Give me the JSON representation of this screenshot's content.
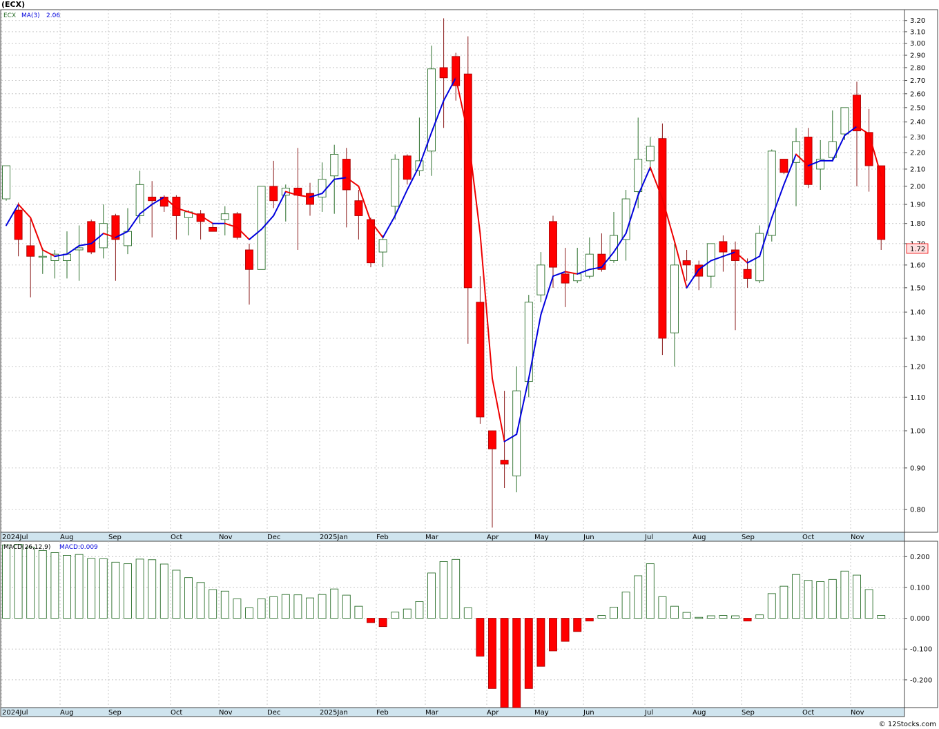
{
  "ticker_label": "(ECX)",
  "legend": {
    "symbol": "ECX",
    "ma_label": "MA(3)",
    "ma_value": "2.06",
    "macd_params": "MACD(26,12,9)",
    "macd_value": "MACD:0.009"
  },
  "watermark": "© 12Stocks.com",
  "last_price_tag": "1.72",
  "colors": {
    "up_candle": "#2a6e2a",
    "down_candle": "#ff0000",
    "ma_up": "#0000dd",
    "ma_down": "#ee0000",
    "axis_band": "#cfe4ee",
    "grid": "#bdbdbd",
    "price_tag_bg": "#ffe0e0"
  },
  "chart_data": [
    {
      "type": "candlestick",
      "scale": "log",
      "ylim": [
        0.75,
        3.3
      ],
      "y_ticks": [
        "0.80",
        "0.90",
        "1.00",
        "1.10",
        "1.20",
        "1.30",
        "1.40",
        "1.50",
        "1.60",
        "1.70",
        "1.80",
        "1.90",
        "2.00",
        "2.10",
        "2.20",
        "2.30",
        "2.40",
        "2.50",
        "2.60",
        "2.70",
        "2.80",
        "2.90",
        "3.00",
        "3.10",
        "3.20"
      ],
      "x_labels": [
        "2024Jul",
        "Aug",
        "Sep",
        "Oct",
        "Nov",
        "Dec",
        "2025Jan",
        "Feb",
        "Mar",
        "Apr",
        "May",
        "Jun",
        "Jul",
        "Aug",
        "Sep",
        "Oct",
        "Nov"
      ],
      "candles": [
        {
          "o": 1.93,
          "h": 2.12,
          "l": 1.92,
          "c": 2.12
        },
        {
          "o": 1.87,
          "h": 1.91,
          "l": 1.64,
          "c": 1.72
        },
        {
          "o": 1.69,
          "h": 1.83,
          "l": 1.46,
          "c": 1.64
        },
        {
          "o": 1.64,
          "h": 1.68,
          "l": 1.56,
          "c": 1.64
        },
        {
          "o": 1.62,
          "h": 1.67,
          "l": 1.54,
          "c": 1.65
        },
        {
          "o": 1.62,
          "h": 1.76,
          "l": 1.54,
          "c": 1.65
        },
        {
          "o": 1.67,
          "h": 1.79,
          "l": 1.53,
          "c": 1.68
        },
        {
          "o": 1.81,
          "h": 1.82,
          "l": 1.65,
          "c": 1.66
        },
        {
          "o": 1.68,
          "h": 1.9,
          "l": 1.63,
          "c": 1.8
        },
        {
          "o": 1.84,
          "h": 1.85,
          "l": 1.53,
          "c": 1.72
        },
        {
          "o": 1.69,
          "h": 1.88,
          "l": 1.65,
          "c": 1.76
        },
        {
          "o": 1.84,
          "h": 2.09,
          "l": 1.8,
          "c": 2.01
        },
        {
          "o": 1.94,
          "h": 2.03,
          "l": 1.73,
          "c": 1.92
        },
        {
          "o": 1.94,
          "h": 1.95,
          "l": 1.86,
          "c": 1.89
        },
        {
          "o": 1.94,
          "h": 1.95,
          "l": 1.72,
          "c": 1.84
        },
        {
          "o": 1.83,
          "h": 1.87,
          "l": 1.74,
          "c": 1.86
        },
        {
          "o": 1.85,
          "h": 1.87,
          "l": 1.72,
          "c": 1.81
        },
        {
          "o": 1.78,
          "h": 1.8,
          "l": 1.76,
          "c": 1.76
        },
        {
          "o": 1.82,
          "h": 1.89,
          "l": 1.74,
          "c": 1.85
        },
        {
          "o": 1.85,
          "h": 1.86,
          "l": 1.72,
          "c": 1.73
        },
        {
          "o": 1.67,
          "h": 1.7,
          "l": 1.43,
          "c": 1.58
        },
        {
          "o": 1.58,
          "h": 2.0,
          "l": 1.58,
          "c": 2.0
        },
        {
          "o": 2.0,
          "h": 2.15,
          "l": 1.88,
          "c": 1.92
        },
        {
          "o": 1.95,
          "h": 2.01,
          "l": 1.81,
          "c": 1.99
        },
        {
          "o": 1.99,
          "h": 2.23,
          "l": 1.67,
          "c": 1.95
        },
        {
          "o": 1.96,
          "h": 2.02,
          "l": 1.84,
          "c": 1.9
        },
        {
          "o": 1.94,
          "h": 2.14,
          "l": 1.86,
          "c": 2.04
        },
        {
          "o": 2.06,
          "h": 2.25,
          "l": 1.85,
          "c": 2.19
        },
        {
          "o": 2.16,
          "h": 2.23,
          "l": 1.78,
          "c": 1.98
        },
        {
          "o": 1.92,
          "h": 1.98,
          "l": 1.72,
          "c": 1.84
        },
        {
          "o": 1.82,
          "h": 1.83,
          "l": 1.59,
          "c": 1.61
        },
        {
          "o": 1.66,
          "h": 1.74,
          "l": 1.59,
          "c": 1.72
        },
        {
          "o": 1.89,
          "h": 2.19,
          "l": 1.82,
          "c": 2.16
        },
        {
          "o": 2.18,
          "h": 2.19,
          "l": 2.01,
          "c": 2.04
        },
        {
          "o": 2.09,
          "h": 2.43,
          "l": 2.06,
          "c": 2.15
        },
        {
          "o": 2.21,
          "h": 2.98,
          "l": 2.06,
          "c": 2.79
        },
        {
          "o": 2.8,
          "h": 3.22,
          "l": 2.36,
          "c": 2.72
        },
        {
          "o": 2.89,
          "h": 2.92,
          "l": 2.55,
          "c": 2.66
        },
        {
          "o": 2.75,
          "h": 3.06,
          "l": 1.28,
          "c": 1.5
        },
        {
          "o": 1.44,
          "h": 1.55,
          "l": 1.02,
          "c": 1.04
        },
        {
          "o": 1.0,
          "h": 1.0,
          "l": 0.76,
          "c": 0.95
        },
        {
          "o": 0.92,
          "h": 1.12,
          "l": 0.85,
          "c": 0.91
        },
        {
          "o": 0.88,
          "h": 1.2,
          "l": 0.84,
          "c": 1.12
        },
        {
          "o": 1.15,
          "h": 1.47,
          "l": 1.1,
          "c": 1.44
        },
        {
          "o": 1.47,
          "h": 1.66,
          "l": 1.44,
          "c": 1.6
        },
        {
          "o": 1.81,
          "h": 1.84,
          "l": 1.5,
          "c": 1.59
        },
        {
          "o": 1.56,
          "h": 1.68,
          "l": 1.42,
          "c": 1.52
        },
        {
          "o": 1.53,
          "h": 1.68,
          "l": 1.52,
          "c": 1.56
        },
        {
          "o": 1.55,
          "h": 1.73,
          "l": 1.54,
          "c": 1.65
        },
        {
          "o": 1.65,
          "h": 1.75,
          "l": 1.57,
          "c": 1.58
        },
        {
          "o": 1.62,
          "h": 1.86,
          "l": 1.61,
          "c": 1.74
        },
        {
          "o": 1.72,
          "h": 1.98,
          "l": 1.62,
          "c": 1.93
        },
        {
          "o": 1.97,
          "h": 2.43,
          "l": 1.88,
          "c": 2.16
        },
        {
          "o": 2.15,
          "h": 2.3,
          "l": 2.09,
          "c": 2.24
        },
        {
          "o": 2.29,
          "h": 2.39,
          "l": 1.24,
          "c": 1.3
        },
        {
          "o": 1.32,
          "h": 1.7,
          "l": 1.2,
          "c": 1.6
        },
        {
          "o": 1.62,
          "h": 1.67,
          "l": 1.53,
          "c": 1.6
        },
        {
          "o": 1.6,
          "h": 1.62,
          "l": 1.49,
          "c": 1.55
        },
        {
          "o": 1.55,
          "h": 1.7,
          "l": 1.5,
          "c": 1.7
        },
        {
          "o": 1.71,
          "h": 1.74,
          "l": 1.57,
          "c": 1.66
        },
        {
          "o": 1.67,
          "h": 1.71,
          "l": 1.33,
          "c": 1.62
        },
        {
          "o": 1.58,
          "h": 1.63,
          "l": 1.5,
          "c": 1.54
        },
        {
          "o": 1.53,
          "h": 1.79,
          "l": 1.52,
          "c": 1.75
        },
        {
          "o": 1.74,
          "h": 2.22,
          "l": 1.71,
          "c": 2.21
        },
        {
          "o": 2.16,
          "h": 2.16,
          "l": 2.07,
          "c": 2.08
        },
        {
          "o": 2.14,
          "h": 2.36,
          "l": 1.89,
          "c": 2.27
        },
        {
          "o": 2.3,
          "h": 2.36,
          "l": 1.99,
          "c": 2.01
        },
        {
          "o": 2.1,
          "h": 2.28,
          "l": 1.98,
          "c": 2.16
        },
        {
          "o": 2.17,
          "h": 2.48,
          "l": 2.15,
          "c": 2.27
        },
        {
          "o": 2.32,
          "h": 2.5,
          "l": 2.28,
          "c": 2.5
        },
        {
          "o": 2.59,
          "h": 2.69,
          "l": 2.0,
          "c": 2.34
        },
        {
          "o": 2.33,
          "h": 2.49,
          "l": 1.97,
          "c": 2.12
        },
        {
          "o": 2.12,
          "h": 2.12,
          "l": 1.67,
          "c": 1.72
        }
      ],
      "ma3": [
        1.79,
        1.9,
        1.83,
        1.67,
        1.64,
        1.65,
        1.69,
        1.7,
        1.75,
        1.73,
        1.76,
        1.85,
        1.9,
        1.94,
        1.88,
        1.86,
        1.84,
        1.8,
        1.8,
        1.78,
        1.72,
        1.77,
        1.84,
        1.97,
        1.95,
        1.94,
        1.96,
        2.04,
        2.05,
        2.0,
        1.81,
        1.73,
        1.84,
        1.98,
        2.12,
        2.33,
        2.55,
        2.72,
        2.32,
        1.75,
        1.16,
        0.97,
        0.99,
        1.16,
        1.39,
        1.55,
        1.57,
        1.56,
        1.58,
        1.59,
        1.66,
        1.75,
        1.95,
        2.11,
        1.93,
        1.71,
        1.5,
        1.58,
        1.62,
        1.64,
        1.66,
        1.61,
        1.64,
        1.83,
        2.01,
        2.19,
        2.12,
        2.15,
        2.15,
        2.31,
        2.37,
        2.32,
        2.06
      ],
      "macd": {
        "ylim": [
          -0.29,
          0.25
        ],
        "y_ticks": [
          "-0.200",
          "-0.100",
          "0.000",
          "0.100",
          "0.200"
        ],
        "values": [
          0.238,
          0.24,
          0.231,
          0.22,
          0.213,
          0.204,
          0.207,
          0.194,
          0.193,
          0.182,
          0.177,
          0.192,
          0.19,
          0.176,
          0.156,
          0.132,
          0.116,
          0.093,
          0.088,
          0.063,
          0.034,
          0.063,
          0.07,
          0.077,
          0.076,
          0.066,
          0.077,
          0.095,
          0.075,
          0.039,
          -0.014,
          -0.027,
          0.02,
          0.03,
          0.054,
          0.147,
          0.184,
          0.191,
          0.034,
          -0.123,
          -0.228,
          -0.289,
          -0.29,
          -0.228,
          -0.156,
          -0.106,
          -0.075,
          -0.043,
          -0.009,
          0.009,
          0.036,
          0.085,
          0.138,
          0.177,
          0.07,
          0.039,
          0.019,
          0.003,
          0.008,
          0.009,
          0.008,
          -0.009,
          0.011,
          0.08,
          0.104,
          0.142,
          0.123,
          0.119,
          0.126,
          0.153,
          0.14,
          0.093,
          0.009
        ]
      }
    }
  ]
}
